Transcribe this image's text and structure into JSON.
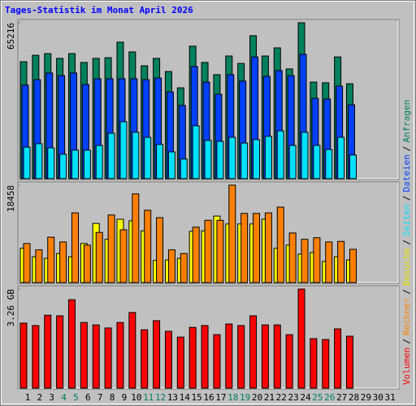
{
  "chart_data": {
    "type": "bar",
    "title": "Tages-Statistik im Monat April 2026",
    "categories": [
      "1",
      "2",
      "3",
      "4",
      "5",
      "6",
      "7",
      "8",
      "9",
      "10",
      "11",
      "12",
      "13",
      "14",
      "15",
      "16",
      "17",
      "18",
      "19",
      "20",
      "21",
      "22",
      "23",
      "24",
      "25",
      "26",
      "27",
      "28",
      "29",
      "30",
      "31"
    ],
    "category_colors": [
      "#000000",
      "#000000",
      "#000000",
      "#00805c",
      "#00805c",
      "#000000",
      "#000000",
      "#000000",
      "#000000",
      "#000000",
      "#00805c",
      "#00805c",
      "#000000",
      "#000000",
      "#000000",
      "#000000",
      "#000000",
      "#00805c",
      "#00805c",
      "#000000",
      "#000000",
      "#000000",
      "#000000",
      "#000000",
      "#00805c",
      "#00805c",
      "#000000",
      "#000000",
      "#000000",
      "#000000",
      "#000000"
    ],
    "legend_separator": "/",
    "panels": [
      {
        "ylim": [
          0,
          65216
        ],
        "yticks": [
          65216
        ],
        "series": [
          {
            "name": "Anfragen",
            "color": "#00805c",
            "values": [
              48900,
              51600,
              52300,
              50300,
              52300,
              48600,
              50300,
              50600,
              57100,
              53000,
              47200,
              50300,
              44800,
              38000,
              55400,
              48600,
              43500,
              51300,
              48200,
              59800,
              51300,
              54700,
              45900,
              65216,
              40400,
              40100,
              50900,
              39700,
              null,
              null,
              null
            ]
          },
          {
            "name": "Dateien",
            "color": "#0040ff",
            "values": [
              39100,
              41400,
              44200,
              43100,
              44200,
              39400,
              41800,
              41800,
              41800,
              41800,
              41400,
              42100,
              36300,
              30600,
              46900,
              40400,
              35300,
              43500,
              40800,
              50900,
              42800,
              45200,
              43100,
              52000,
              33600,
              33300,
              38700,
              30900,
              null,
              null,
              null
            ]
          },
          {
            "name": "Seiten",
            "color": "#00e0ff",
            "values": [
              13200,
              14600,
              12900,
              10200,
              11900,
              11900,
              13900,
              19000,
              23800,
              19400,
              17300,
              14300,
              11200,
              8200,
              22100,
              16000,
              15600,
              17300,
              14900,
              16300,
              17700,
              20000,
              13900,
              19400,
              13900,
              12200,
              17300,
              9900,
              null,
              null,
              null
            ]
          }
        ]
      },
      {
        "ylim": [
          0,
          18458
        ],
        "yticks": [
          18458
        ],
        "series": [
          {
            "name": "Besuche",
            "color": "#ffff00",
            "values": [
              6500,
              4900,
              4600,
              5500,
              4900,
              7400,
              11200,
              8200,
              12000,
              11700,
              9800,
              4200,
              4300,
              4600,
              9700,
              9800,
              12600,
              11100,
              11100,
              11100,
              12000,
              6500,
              7100,
              5400,
              5700,
              4000,
              4900,
              4300,
              null,
              null,
              null
            ]
          },
          {
            "name": "Rechner",
            "color": "#ff8000",
            "values": [
              7400,
              6200,
              8600,
              7700,
              13200,
              7100,
              9500,
              12800,
              10000,
              16800,
              13700,
              12300,
              6200,
              5500,
              10500,
              11800,
              11800,
              18458,
              13100,
              13100,
              13200,
              14300,
              9400,
              8200,
              8500,
              7700,
              7800,
              6300,
              null,
              null,
              null
            ]
          }
        ]
      },
      {
        "ylim": [
          0,
          3.26
        ],
        "yticks": [
          {
            "value": 3.26,
            "label": "3.26 GB"
          }
        ],
        "series": [
          {
            "name": "Volumen",
            "color": "#ff0000",
            "values": [
              2.14,
              2.06,
              2.4,
              2.38,
              2.91,
              2.16,
              2.08,
              1.98,
              2.16,
              2.49,
              1.92,
              2.22,
              1.87,
              1.68,
              2.0,
              2.06,
              1.76,
              2.11,
              2.06,
              2.38,
              2.08,
              2.08,
              1.76,
              3.26,
              1.63,
              1.6,
              1.95,
              1.71,
              null,
              null,
              null
            ]
          }
        ]
      }
    ]
  }
}
